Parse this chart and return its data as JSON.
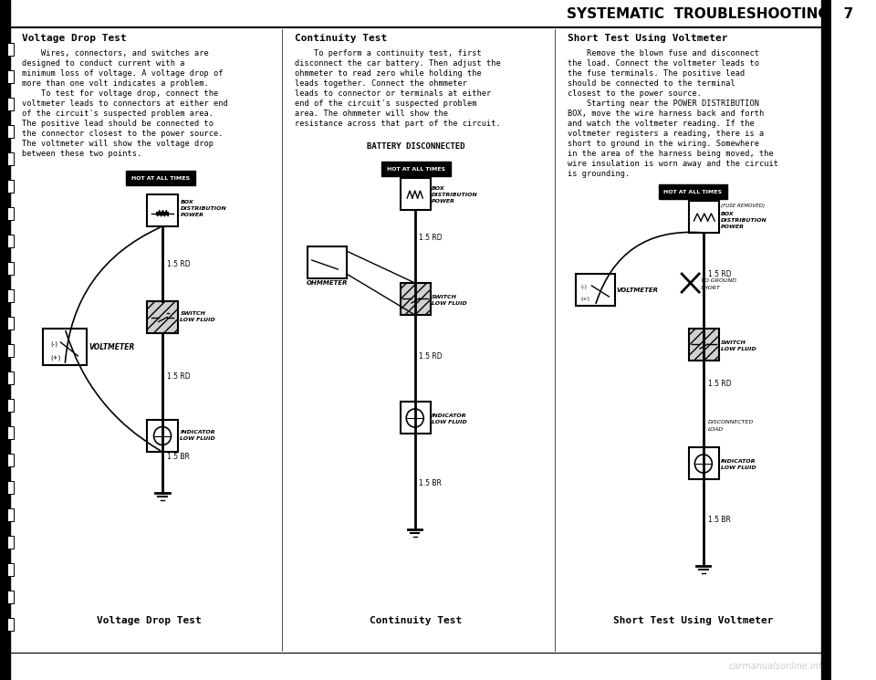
{
  "page_title": "SYSTEMATIC  TROUBLESHOOTING   7",
  "bg_color": "#ffffff",
  "border_color": "#000000",
  "watermark": "carmanualsonline.info",
  "section1_title": "Voltage Drop Test",
  "section1_body": [
    "    Wires, connectors, and switches are",
    "designed to conduct current with a",
    "minimum loss of voltage. A voltage drop of",
    "more than one volt indicates a problem.",
    "    To test for voltage drop, connect the",
    "voltmeter leads to connectors at either end",
    "of the circuit's suspected problem area.",
    "The positive lead should be connected to",
    "the connector closest to the power source.",
    "The voltmeter will show the voltage drop",
    "between these two points."
  ],
  "section1_caption": "Voltage Drop Test",
  "section2_title": "Continuity Test",
  "section2_body": [
    "    To perform a continuity test, first",
    "disconnect the car battery. Then adjust the",
    "ohmmeter to read zero while holding the",
    "leads together. Connect the ohmmeter",
    "leads to connector or terminals at either",
    "end of the circuit's suspected problem",
    "area. The ohmmeter will show the",
    "resistance across that part of the circuit."
  ],
  "section2_caption": "Continuity Test",
  "section3_title": "Short Test Using Voltmeter",
  "section3_body": [
    "    Remove the blown fuse and disconnect",
    "the load. Connect the voltmeter leads to",
    "the fuse terminals. The positive lead",
    "should be connected to the terminal",
    "closest to the power source.",
    "    Starting near the POWER DISTRIBUTION",
    "BOX, move the wire harness back and forth",
    "and watch the voltmeter reading. If the",
    "voltmeter registers a reading, there is a",
    "short to ground in the wiring. Somewhere",
    "in the area of the harness being moved, the",
    "wire insulation is worn away and the circuit",
    "is grounding."
  ],
  "section3_caption": "Short Test Using Voltmeter"
}
